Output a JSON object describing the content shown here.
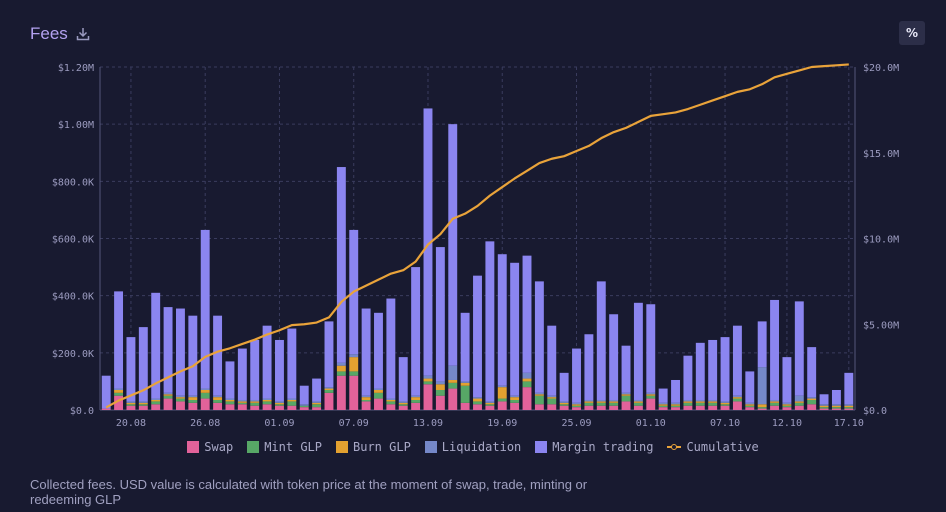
{
  "header": {
    "title": "Fees",
    "download_icon": "download-icon",
    "percent_label": "%"
  },
  "description": "Collected fees. USD value is calculated with token price at the moment of swap, trade, minting or redeeming GLP",
  "colors": {
    "swap": "#e2629a",
    "mint": "#57a766",
    "burn": "#e3a130",
    "liquidation": "#7588c9",
    "margin": "#8b85f0",
    "cumulative": "#e9a33a",
    "grid": "#3a3c5e"
  },
  "legend": [
    {
      "key": "swap",
      "label": "Swap"
    },
    {
      "key": "mint",
      "label": "Mint GLP"
    },
    {
      "key": "burn",
      "label": "Burn GLP"
    },
    {
      "key": "liquidation",
      "label": "Liquidation"
    },
    {
      "key": "margin",
      "label": "Margin trading"
    },
    {
      "key": "cumulative",
      "label": "Cumulative"
    }
  ],
  "chart_data": {
    "type": "bar",
    "stacked": true,
    "grid": true,
    "legend_position": "bottom",
    "y_left": {
      "ylim": [
        0,
        1200000
      ],
      "ticks": [
        0,
        200000,
        400000,
        600000,
        800000,
        1000000,
        1200000
      ],
      "tick_labels": [
        "$0.0",
        "$200.0K",
        "$400.0K",
        "$600.0K",
        "$800.0K",
        "$1.00M",
        "$1.20M"
      ]
    },
    "y_right": {
      "ylim": [
        0,
        20000000
      ],
      "ticks": [
        0,
        5000000,
        10000000,
        15000000,
        20000000
      ],
      "tick_labels": [
        "$0.0",
        "$5.00M",
        "$10.0M",
        "$15.0M",
        "$20.0M"
      ]
    },
    "x_tick_labels": [
      {
        "label": "20.08",
        "index": 2
      },
      {
        "label": "26.08",
        "index": 8
      },
      {
        "label": "01.09",
        "index": 14
      },
      {
        "label": "07.09",
        "index": 20
      },
      {
        "label": "13.09",
        "index": 26
      },
      {
        "label": "19.09",
        "index": 32
      },
      {
        "label": "25.09",
        "index": 38
      },
      {
        "label": "01.10",
        "index": 44
      },
      {
        "label": "07.10",
        "index": 50
      },
      {
        "label": "12.10",
        "index": 55
      },
      {
        "label": "17.10",
        "index": 60
      }
    ],
    "series": [
      {
        "name": "Swap",
        "key": "swap",
        "values": [
          5000,
          50000,
          15000,
          15000,
          20000,
          40000,
          30000,
          25000,
          40000,
          25000,
          20000,
          20000,
          15000,
          20000,
          15000,
          15000,
          10000,
          10000,
          60000,
          120000,
          120000,
          30000,
          40000,
          20000,
          15000,
          25000,
          90000,
          50000,
          75000,
          25000,
          20000,
          15000,
          30000,
          25000,
          80000,
          20000,
          20000,
          15000,
          10000,
          15000,
          15000,
          15000,
          30000,
          15000,
          40000,
          10000,
          10000,
          15000,
          15000,
          15000,
          15000,
          30000,
          10000,
          5000,
          15000,
          10000,
          15000,
          20000,
          5000,
          5000,
          5000
        ]
      },
      {
        "name": "Mint GLP",
        "key": "mint",
        "values": [
          0,
          10000,
          5000,
          5000,
          10000,
          10000,
          10000,
          10000,
          20000,
          10000,
          10000,
          5000,
          10000,
          10000,
          5000,
          15000,
          5000,
          10000,
          10000,
          15000,
          15000,
          5000,
          20000,
          10000,
          5000,
          10000,
          10000,
          20000,
          20000,
          60000,
          10000,
          5000,
          10000,
          10000,
          20000,
          30000,
          20000,
          5000,
          5000,
          10000,
          10000,
          10000,
          20000,
          10000,
          10000,
          5000,
          5000,
          10000,
          10000,
          10000,
          5000,
          10000,
          5000,
          5000,
          10000,
          5000,
          10000,
          15000,
          5000,
          5000,
          5000
        ]
      },
      {
        "name": "Burn GLP",
        "key": "burn",
        "values": [
          0,
          10000,
          5000,
          5000,
          5000,
          5000,
          5000,
          10000,
          10000,
          10000,
          5000,
          5000,
          5000,
          5000,
          5000,
          5000,
          0,
          5000,
          5000,
          20000,
          50000,
          10000,
          10000,
          5000,
          5000,
          10000,
          10000,
          20000,
          10000,
          10000,
          10000,
          5000,
          40000,
          10000,
          10000,
          5000,
          5000,
          5000,
          5000,
          5000,
          5000,
          5000,
          5000,
          5000,
          5000,
          5000,
          5000,
          5000,
          5000,
          5000,
          5000,
          5000,
          5000,
          10000,
          5000,
          5000,
          5000,
          5000,
          5000,
          5000,
          5000
        ]
      },
      {
        "name": "Liquidation",
        "key": "liquidation",
        "values": [
          0,
          5000,
          5000,
          5000,
          5000,
          5000,
          5000,
          5000,
          5000,
          5000,
          5000,
          5000,
          5000,
          5000,
          5000,
          5000,
          5000,
          5000,
          5000,
          10000,
          10000,
          5000,
          5000,
          5000,
          5000,
          5000,
          10000,
          10000,
          50000,
          5000,
          5000,
          5000,
          5000,
          5000,
          20000,
          5000,
          5000,
          5000,
          5000,
          5000,
          5000,
          5000,
          5000,
          5000,
          5000,
          5000,
          5000,
          5000,
          5000,
          5000,
          5000,
          5000,
          5000,
          130000,
          5000,
          5000,
          20000,
          5000,
          5000,
          5000,
          5000
        ]
      },
      {
        "name": "Margin trading",
        "key": "margin",
        "values": [
          115000,
          340000,
          225000,
          260000,
          370000,
          300000,
          305000,
          280000,
          555000,
          280000,
          130000,
          180000,
          210000,
          255000,
          215000,
          245000,
          65000,
          80000,
          230000,
          685000,
          435000,
          305000,
          265000,
          350000,
          155000,
          450000,
          935000,
          470000,
          845000,
          240000,
          425000,
          560000,
          460000,
          465000,
          410000,
          390000,
          245000,
          100000,
          190000,
          230000,
          415000,
          300000,
          165000,
          340000,
          310000,
          50000,
          80000,
          155000,
          200000,
          210000,
          225000,
          245000,
          110000,
          160000,
          350000,
          160000,
          330000,
          175000,
          35000,
          50000,
          110000
        ]
      }
    ],
    "cumulative": {
      "name": "Cumulative",
      "values": [
        0.15,
        0.55,
        0.85,
        1.15,
        1.55,
        1.9,
        2.25,
        2.55,
        3.1,
        3.4,
        3.6,
        3.85,
        4.1,
        4.4,
        4.65,
        4.95,
        5.0,
        5.1,
        5.4,
        6.3,
        6.9,
        7.25,
        7.6,
        7.95,
        8.15,
        8.65,
        9.65,
        10.25,
        11.15,
        11.45,
        11.9,
        12.5,
        13.0,
        13.5,
        13.95,
        14.4,
        14.65,
        14.8,
        15.1,
        15.4,
        15.85,
        16.2,
        16.45,
        16.8,
        17.15,
        17.25,
        17.35,
        17.55,
        17.8,
        18.05,
        18.3,
        18.55,
        18.7,
        19.0,
        19.4,
        19.6,
        19.8,
        20.0,
        20.05,
        20.1,
        20.15
      ]
    },
    "cumulative_unit": "millions USD"
  }
}
